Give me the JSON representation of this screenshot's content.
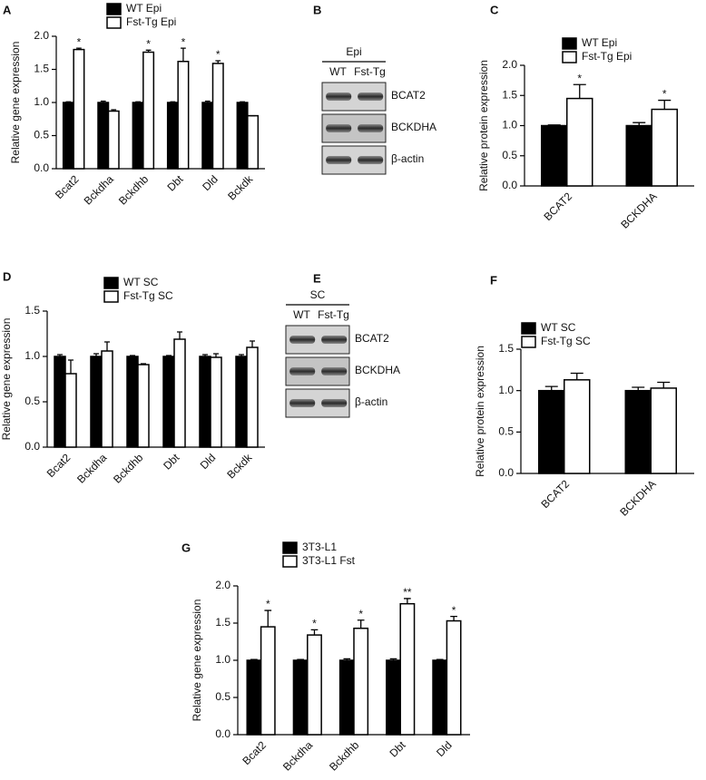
{
  "chart_data": [
    {
      "type": "bar",
      "label": "A",
      "ylabel": "Relative gene expression",
      "categories": [
        "Bcat2",
        "Bckdha",
        "Bckdhb",
        "Dbt",
        "Dld",
        "Bckdk"
      ],
      "series": [
        {
          "name": "WT Epi",
          "color": "#000000",
          "values": [
            1.0,
            1.0,
            1.0,
            1.0,
            1.0,
            1.0
          ],
          "errors": [
            0.01,
            0.02,
            0.01,
            0.01,
            0.02,
            0.01
          ]
        },
        {
          "name": "Fst-Tg Epi",
          "color": "#ffffff",
          "values": [
            1.8,
            0.87,
            1.76,
            1.62,
            1.59,
            0.8
          ],
          "errors": [
            0.02,
            0.02,
            0.03,
            0.2,
            0.04,
            0.0
          ],
          "annotations": [
            "*",
            null,
            "*",
            "*",
            "*",
            null
          ]
        }
      ],
      "ylim": [
        0,
        2
      ],
      "yticks": [
        {
          "value": 0,
          "label": "0.0"
        },
        {
          "value": 0.5,
          "label": "0.5"
        },
        {
          "value": 1,
          "label": "1.0"
        },
        {
          "value": 1.5,
          "label": "1.5"
        },
        {
          "value": 2,
          "label": "2.0"
        }
      ]
    },
    {
      "type": "blot",
      "label": "B",
      "group": "Epi",
      "lanes": [
        "WT",
        "Fst-Tg"
      ],
      "bands": [
        "BCAT2",
        "BCKDHA",
        "β-actin"
      ]
    },
    {
      "type": "bar",
      "label": "C",
      "ylabel": "Relative protein expression",
      "categories": [
        "BCAT2",
        "BCKDHA"
      ],
      "series": [
        {
          "name": "WT Epi",
          "color": "#000000",
          "values": [
            1.0,
            1.0
          ],
          "errors": [
            0.01,
            0.05
          ]
        },
        {
          "name": "Fst-Tg Epi",
          "color": "#ffffff",
          "values": [
            1.45,
            1.27
          ],
          "errors": [
            0.23,
            0.15
          ],
          "annotations": [
            "*",
            "*"
          ]
        }
      ],
      "ylim": [
        0,
        2
      ],
      "yticks": [
        {
          "value": 0,
          "label": "0.0"
        },
        {
          "value": 0.5,
          "label": "0.5"
        },
        {
          "value": 1,
          "label": "1.0"
        },
        {
          "value": 1.5,
          "label": "1.5"
        },
        {
          "value": 2,
          "label": "2.0"
        }
      ]
    },
    {
      "type": "bar",
      "label": "D",
      "ylabel": "Relative gene expression",
      "categories": [
        "Bcat2",
        "Bckdha",
        "Bckdhb",
        "Dbt",
        "Dld",
        "Bckdk"
      ],
      "series": [
        {
          "name": "WT SC",
          "color": "#000000",
          "values": [
            1.0,
            1.0,
            1.0,
            1.0,
            1.0,
            1.0
          ],
          "errors": [
            0.02,
            0.03,
            0.01,
            0.01,
            0.02,
            0.02
          ]
        },
        {
          "name": "Fst-Tg SC",
          "color": "#ffffff",
          "values": [
            0.81,
            1.06,
            0.91,
            1.19,
            0.99,
            1.1
          ],
          "errors": [
            0.15,
            0.1,
            0.01,
            0.08,
            0.04,
            0.07
          ]
        }
      ],
      "ylim": [
        0,
        1.5
      ],
      "yticks": [
        {
          "value": 0,
          "label": "0.0"
        },
        {
          "value": 0.5,
          "label": "0.5"
        },
        {
          "value": 1,
          "label": "1.0"
        },
        {
          "value": 1.5,
          "label": "1.5"
        }
      ]
    },
    {
      "type": "blot",
      "label": "E",
      "group": "SC",
      "lanes": [
        "WT",
        "Fst-Tg"
      ],
      "bands": [
        "BCAT2",
        "BCKDHA",
        "β-actin"
      ]
    },
    {
      "type": "bar",
      "label": "F",
      "ylabel": "Relative protein expression",
      "categories": [
        "BCAT2",
        "BCKDHA"
      ],
      "series": [
        {
          "name": "WT SC",
          "color": "#000000",
          "values": [
            1.0,
            1.0
          ],
          "errors": [
            0.05,
            0.04
          ]
        },
        {
          "name": "Fst-Tg SC",
          "color": "#ffffff",
          "values": [
            1.13,
            1.03
          ],
          "errors": [
            0.08,
            0.07
          ]
        }
      ],
      "ylim": [
        0,
        1.5
      ],
      "yticks": [
        {
          "value": 0,
          "label": "0.0"
        },
        {
          "value": 0.5,
          "label": "0.5"
        },
        {
          "value": 1,
          "label": "1.0"
        },
        {
          "value": 1.5,
          "label": "1.5"
        }
      ]
    },
    {
      "type": "bar",
      "label": "G",
      "ylabel": "Relative gene expression",
      "categories": [
        "Bcat2",
        "Bckdha",
        "Bckdhb",
        "Dbt",
        "Dld"
      ],
      "series": [
        {
          "name": "3T3-L1",
          "color": "#000000",
          "values": [
            1.0,
            1.0,
            1.0,
            1.0,
            1.0
          ],
          "errors": [
            0.01,
            0.01,
            0.02,
            0.02,
            0.01
          ]
        },
        {
          "name": "3T3-L1 Fst",
          "color": "#ffffff",
          "values": [
            1.45,
            1.34,
            1.43,
            1.76,
            1.53
          ],
          "errors": [
            0.22,
            0.07,
            0.11,
            0.07,
            0.06
          ],
          "annotations": [
            "*",
            "*",
            "*",
            "**",
            "*"
          ]
        }
      ],
      "ylim": [
        0,
        2
      ],
      "yticks": [
        {
          "value": 0,
          "label": "0.0"
        },
        {
          "value": 0.5,
          "label": "0.5"
        },
        {
          "value": 1,
          "label": "1.0"
        },
        {
          "value": 1.5,
          "label": "1.5"
        },
        {
          "value": 2,
          "label": "2.0"
        }
      ]
    }
  ]
}
